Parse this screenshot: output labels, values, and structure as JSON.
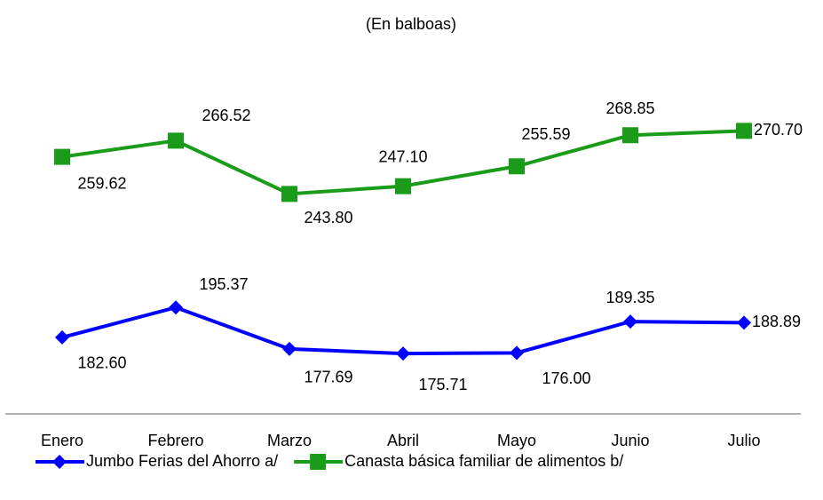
{
  "chart_data": {
    "type": "line",
    "title": "(En balboas)",
    "categories": [
      "Enero",
      "Febrero",
      "Marzo",
      "Abril",
      "Mayo",
      "Junio",
      "Julio"
    ],
    "series": [
      {
        "name": "Jumbo Ferias del Ahorro a/",
        "color": "#0000ff",
        "marker": "diamond",
        "values": [
          182.6,
          195.37,
          177.69,
          175.71,
          176.0,
          189.35,
          188.89
        ],
        "value_labels": [
          "182.60",
          "195.37",
          "177.69",
          "175.71",
          "176.00",
          "189.35",
          "188.89"
        ]
      },
      {
        "name": "Canasta básica familiar de alimentos b/",
        "color": "#1a9c1a",
        "marker": "square",
        "values": [
          259.62,
          266.52,
          243.8,
          247.1,
          255.59,
          268.85,
          270.7
        ],
        "value_labels": [
          "259.62",
          "266.52",
          "243.80",
          "247.10",
          "255.59",
          "268.85",
          "270.70"
        ]
      }
    ],
    "ylim": [
      150,
      300
    ],
    "legend": "bottom"
  }
}
